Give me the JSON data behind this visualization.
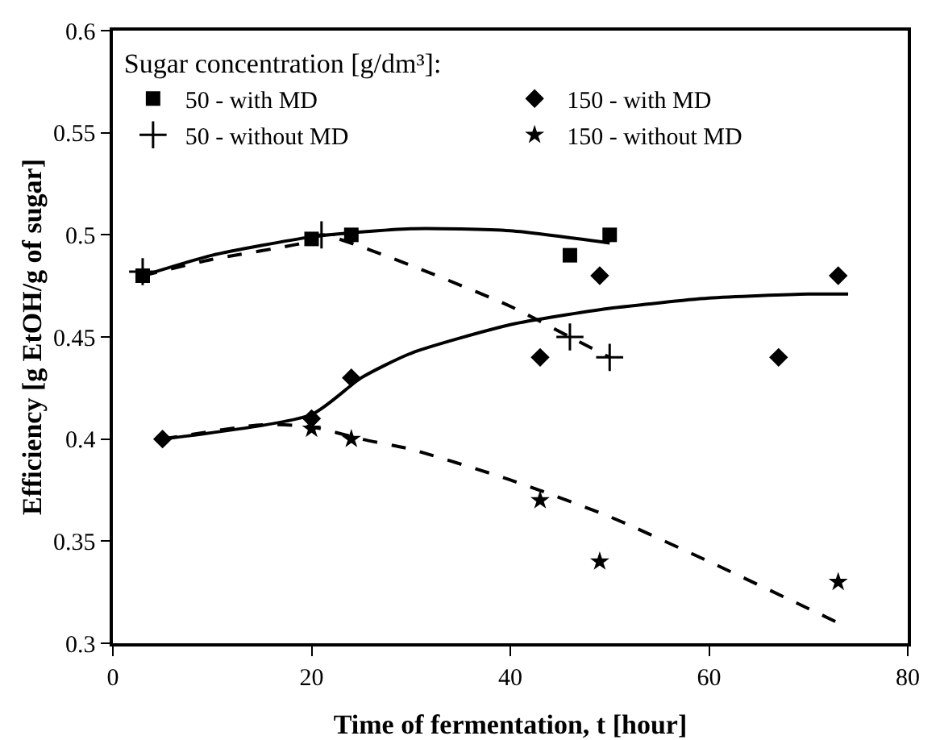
{
  "chart_data": {
    "type": "scatter",
    "xlabel": "Time of fermentation, t [hour]",
    "ylabel": "Efficiency [g EtOH/g of sugar]",
    "legend_title": "Sugar concentration [g/dm³]:",
    "legend": "top left",
    "grid": false,
    "xlim": [
      0,
      80
    ],
    "xticks": [
      0,
      20,
      40,
      60,
      80
    ],
    "ylim": [
      0.3,
      0.6
    ],
    "yticks": [
      0.3,
      0.35,
      0.4,
      0.45,
      0.5,
      0.55,
      0.6
    ],
    "series": [
      {
        "name": "50 - with MD",
        "color": "#000000",
        "marker": "square",
        "x": [
          3,
          20,
          24,
          46,
          50
        ],
        "values": [
          0.48,
          0.498,
          0.5,
          0.49,
          0.5
        ]
      },
      {
        "name": "150 - with MD",
        "color": "#000000",
        "marker": "diamond",
        "x": [
          5,
          20,
          24,
          43,
          49,
          67,
          73
        ],
        "values": [
          0.4,
          0.41,
          0.43,
          0.44,
          0.48,
          0.44,
          0.48
        ]
      },
      {
        "name": "50 - without MD",
        "color": "#000000",
        "marker": "cross",
        "x": [
          3,
          21,
          46,
          50
        ],
        "values": [
          0.482,
          0.5,
          0.45,
          0.44
        ]
      },
      {
        "name": "150 - without MD",
        "color": "#000000",
        "marker": "star",
        "x": [
          20,
          24,
          43,
          49,
          73
        ],
        "values": [
          0.405,
          0.4,
          0.37,
          0.34,
          0.33
        ]
      },
      {
        "type": "line",
        "color": "#000000",
        "marker": "none",
        "line_style": "solid",
        "x": [
          3,
          10,
          20,
          30,
          40,
          50
        ],
        "values": [
          0.48,
          0.49,
          0.499,
          0.503,
          0.502,
          0.496
        ]
      },
      {
        "type": "line",
        "color": "#000000",
        "marker": "none",
        "line_style": "dashed",
        "x": [
          3,
          10,
          20,
          21,
          30,
          40,
          46,
          50
        ],
        "values": [
          0.48,
          0.488,
          0.497,
          0.5,
          0.485,
          0.465,
          0.45,
          0.44
        ]
      },
      {
        "type": "line",
        "color": "#000000",
        "marker": "none",
        "line_style": "solid",
        "x": [
          5,
          20,
          25,
          30,
          40,
          50,
          60,
          70,
          74
        ],
        "values": [
          0.4,
          0.412,
          0.43,
          0.442,
          0.456,
          0.464,
          0.469,
          0.471,
          0.471
        ]
      },
      {
        "type": "line",
        "color": "#000000",
        "marker": "none",
        "line_style": "dashed",
        "x": [
          5,
          15,
          20,
          25,
          30,
          40,
          50,
          60,
          70,
          73
        ],
        "values": [
          0.4,
          0.407,
          0.406,
          0.4,
          0.395,
          0.38,
          0.362,
          0.34,
          0.317,
          0.31
        ]
      }
    ]
  }
}
